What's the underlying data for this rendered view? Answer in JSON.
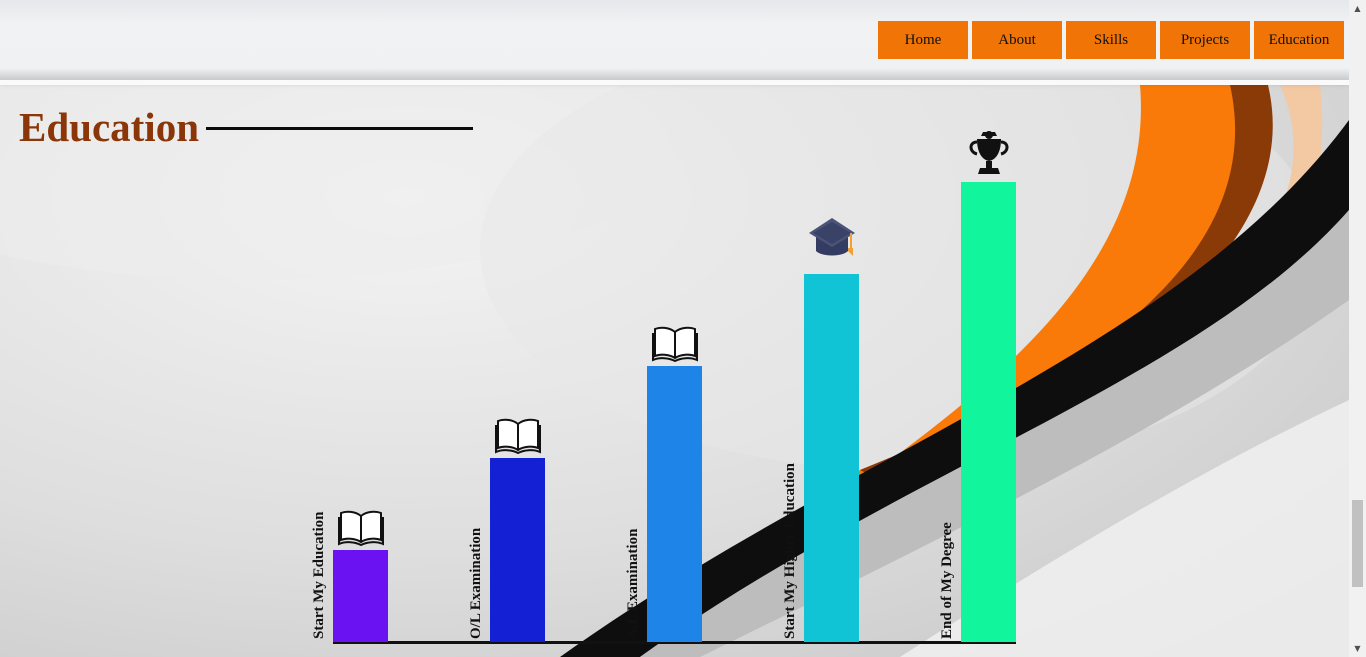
{
  "nav": {
    "items": [
      {
        "label": "Home"
      },
      {
        "label": "About"
      },
      {
        "label": "Skills"
      },
      {
        "label": "Projects"
      },
      {
        "label": "Education"
      }
    ]
  },
  "section": {
    "title": "Education"
  },
  "chart_data": {
    "type": "bar",
    "title": "",
    "xlabel": "",
    "ylabel": "",
    "categories": [
      "Start My Education",
      "O/L Examination",
      "A/L Examination",
      "Start My Higher Education",
      "End of My Degree"
    ],
    "values": [
      1,
      2,
      3,
      4,
      5
    ],
    "ylim": [
      0,
      5
    ],
    "colors": [
      "#6a12f2",
      "#1320d3",
      "#1f84e8",
      "#11c4d5",
      "#11f59c"
    ],
    "icons": [
      "open-book-icon",
      "open-book-icon",
      "open-book-icon",
      "graduation-cap-icon",
      "trophy-icon"
    ],
    "grid": false
  }
}
